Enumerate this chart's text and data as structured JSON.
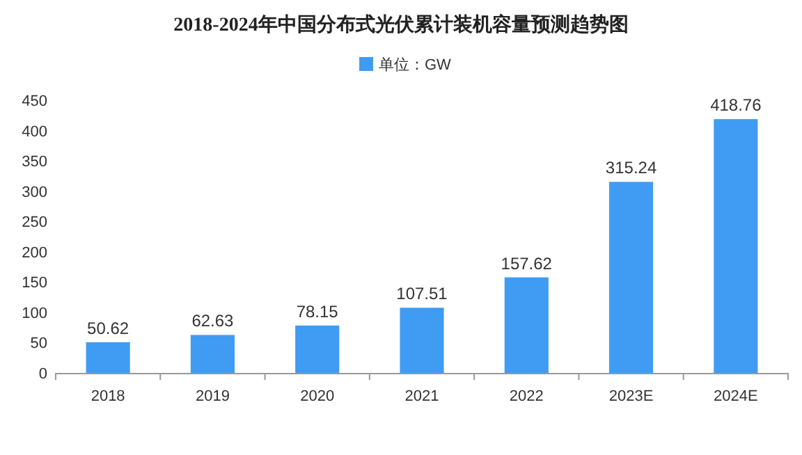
{
  "chart_data": {
    "type": "bar",
    "title": "2018-2024年中国分布式光伏累计装机容量预测趋势图",
    "categories": [
      "2018",
      "2019",
      "2020",
      "2021",
      "2022",
      "2023E",
      "2024E"
    ],
    "series": [
      {
        "name": "单位：GW",
        "color": "#3f9cf2",
        "values": [
          50.62,
          62.63,
          78.15,
          107.51,
          157.62,
          315.24,
          418.76
        ]
      }
    ],
    "ylim": [
      0,
      450
    ],
    "yticks": [
      0,
      50,
      100,
      150,
      200,
      250,
      300,
      350,
      400,
      450
    ],
    "grid": false,
    "legend": "top",
    "data_labels": true
  }
}
